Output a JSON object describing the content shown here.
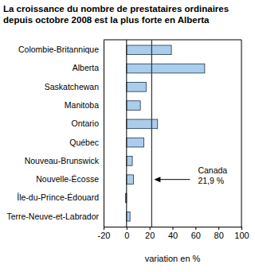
{
  "chart_data": {
    "type": "bar",
    "orientation": "horizontal",
    "title": "La croissance du nombre de prestataires ordinaires depuis octobre 2008 est la plus forte en Alberta",
    "categories": [
      "Colombie-Britannique",
      "Alberta",
      "Saskatchewan",
      "Manitoba",
      "Ontario",
      "Québec",
      "Nouveau-Brunswick",
      "Nouvelle-Écosse",
      "Île-du-Prince-Édouard",
      "Terre-Neuve-et-Labrador"
    ],
    "values": [
      39,
      68,
      17,
      12,
      27,
      15,
      5,
      6,
      -1,
      3
    ],
    "color": "#a9cdea",
    "xlim": [
      -20,
      100
    ],
    "xticks": [
      -20,
      0,
      20,
      40,
      60,
      80,
      100
    ],
    "xlabel": "variation en %",
    "grid": false,
    "annotation": {
      "value": 21.9,
      "label": [
        "Canada",
        "21,9 %"
      ]
    }
  }
}
